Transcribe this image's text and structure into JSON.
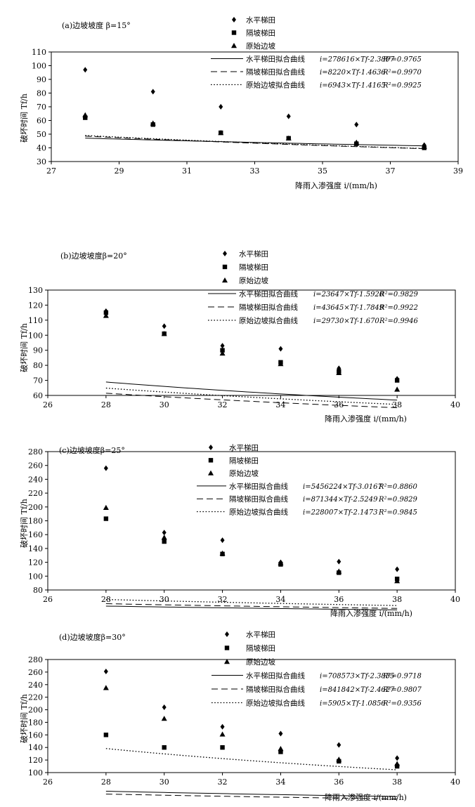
{
  "chart_data": [
    {
      "type": "scatter",
      "title": "(a)边坡坡度 β=15°",
      "xlabel": "降雨入渗强度 i/(mm/h)",
      "ylabel": "破坏时间 Tf/h",
      "xlim": [
        27,
        39
      ],
      "xticks": [
        27,
        29,
        31,
        33,
        35,
        37,
        39
      ],
      "ylim": [
        30,
        110
      ],
      "yticks": [
        30,
        40,
        50,
        60,
        70,
        80,
        90,
        100,
        110
      ],
      "series": [
        {
          "name": "水平梯田",
          "marker": "diamond",
          "x": [
            28,
            30,
            32,
            34,
            36,
            38
          ],
          "y": [
            97,
            81,
            70,
            63,
            57,
            42
          ]
        },
        {
          "name": "隔坡梯田",
          "marker": "square",
          "x": [
            28,
            30,
            32,
            34,
            36,
            38
          ],
          "y": [
            62,
            57,
            51,
            47,
            43,
            40
          ]
        },
        {
          "name": "原始边坡",
          "marker": "triangle",
          "x": [
            28,
            30,
            32,
            34,
            36,
            38
          ],
          "y": [
            64,
            58,
            51,
            47,
            44,
            41
          ]
        }
      ],
      "fits": [
        {
          "name": "水平梯田拟合曲线",
          "equation": "i=278616×Tf-2.3897",
          "r2": "R²=0.9765",
          "style": "solid",
          "a": 278616,
          "b": 2.3897
        },
        {
          "name": "隔坡梯田拟合曲线",
          "equation": "i=8220×Tf-1.4636",
          "r2": "R²=0.9970",
          "style": "dashed",
          "a": 8220,
          "b": 1.4636
        },
        {
          "name": "原始边坡拟合曲线",
          "equation": "i=6943×Tf-1.4165",
          "r2": "R²=0.9925",
          "style": "dotted",
          "a": 6943,
          "b": 1.4165
        }
      ]
    },
    {
      "type": "scatter",
      "title": "(b)边坡坡度β=20°",
      "xlabel": "降雨入渗强度 i/(mm/h)",
      "ylabel": "破坏时间 Tf/h",
      "xlim": [
        26,
        40
      ],
      "xticks": [
        26,
        28,
        30,
        32,
        34,
        36,
        38,
        40
      ],
      "ylim": [
        60,
        130
      ],
      "yticks": [
        60,
        70,
        80,
        90,
        100,
        110,
        120,
        130
      ],
      "series": [
        {
          "name": "水平梯田",
          "marker": "diamond",
          "x": [
            28,
            30,
            32,
            34,
            36,
            38
          ],
          "y": [
            116,
            106,
            93,
            91,
            78,
            71
          ]
        },
        {
          "name": "隔坡梯田",
          "marker": "square",
          "x": [
            28,
            30,
            32,
            34,
            36,
            38
          ],
          "y": [
            115,
            101,
            90,
            82,
            76,
            70
          ]
        },
        {
          "name": "原始边坡",
          "marker": "triangle",
          "x": [
            28,
            30,
            32,
            34,
            36,
            38
          ],
          "y": [
            113,
            101,
            88,
            81,
            75,
            64
          ]
        }
      ],
      "fits": [
        {
          "name": "水平梯田拟合曲线",
          "equation": "i=23647×Tf-1.5920",
          "r2": "R²=0.9829",
          "style": "solid",
          "a": 23647,
          "b": 1.592
        },
        {
          "name": "隔坡梯田拟合曲线",
          "equation": "i=43645×Tf-1.7849",
          "r2": "R²=0.9922",
          "style": "dashed",
          "a": 43645,
          "b": 1.7849
        },
        {
          "name": "原始边坡拟合曲线",
          "equation": "i=29730×Tf-1.670",
          "r2": "R²=0.9946",
          "style": "dotted",
          "a": 29730,
          "b": 1.67
        }
      ]
    },
    {
      "type": "scatter",
      "title": "(c)边坡坡度β=25°",
      "xlabel": "降雨入渗强度 i/(mm/h)",
      "ylabel": "破坏时间 Tf/h",
      "xlim": [
        26,
        40
      ],
      "xticks": [
        26,
        28,
        30,
        32,
        34,
        36,
        38,
        40
      ],
      "ylim": [
        80,
        280
      ],
      "yticks": [
        80,
        100,
        120,
        140,
        160,
        180,
        200,
        220,
        240,
        260,
        280
      ],
      "series": [
        {
          "name": "水平梯田",
          "marker": "diamond",
          "x": [
            28,
            30,
            32,
            34,
            36,
            38
          ],
          "y": [
            256,
            163,
            152,
            120,
            121,
            110
          ]
        },
        {
          "name": "隔坡梯田",
          "marker": "square",
          "x": [
            28,
            30,
            32,
            34,
            36,
            38
          ],
          "y": [
            183,
            150,
            132,
            117,
            105,
            96
          ]
        },
        {
          "name": "原始边坡",
          "marker": "triangle",
          "x": [
            28,
            30,
            32,
            34,
            36,
            38
          ],
          "y": [
            199,
            156,
            133,
            119,
            107,
            93
          ]
        }
      ],
      "fits": [
        {
          "name": "水平梯田拟合曲线",
          "equation": "i=5456224×Tf-3.0167",
          "r2": "R²=0.8860",
          "style": "solid",
          "a": 5456224,
          "b": 3.0167
        },
        {
          "name": "隔坡梯田拟合曲线",
          "equation": "i=871344×Tf-2.5249",
          "r2": "R²=0.9829",
          "style": "dashed",
          "a": 871344,
          "b": 2.5249
        },
        {
          "name": "原始边坡拟合曲线",
          "equation": "i=228007×Tf-2.1473",
          "r2": "R²=0.9845",
          "style": "dotted",
          "a": 228007,
          "b": 2.1473
        }
      ]
    },
    {
      "type": "scatter",
      "title": "(d)边坡坡度β=30°",
      "xlabel": "降雨入渗强度 i/(mm/h)",
      "ylabel": "破坏时间 Tf/h",
      "xlim": [
        26,
        40
      ],
      "xticks": [
        26,
        28,
        30,
        32,
        34,
        36,
        38,
        40
      ],
      "ylim": [
        100,
        280
      ],
      "yticks": [
        100,
        120,
        140,
        160,
        180,
        200,
        220,
        240,
        260,
        280
      ],
      "series": [
        {
          "name": "水平梯田",
          "marker": "diamond",
          "x": [
            28,
            30,
            32,
            34,
            36,
            38
          ],
          "y": [
            261,
            204,
            173,
            162,
            144,
            123
          ]
        },
        {
          "name": "隔坡梯田",
          "marker": "square",
          "x": [
            28,
            30,
            32,
            34,
            36,
            38
          ],
          "y": [
            160,
            140,
            140,
            133,
            118,
            110
          ]
        },
        {
          "name": "原始边坡",
          "marker": "triangle",
          "x": [
            28,
            30,
            32,
            34,
            36,
            38
          ],
          "y": [
            235,
            186,
            161,
            138,
            121,
            114
          ]
        }
      ],
      "fits": [
        {
          "name": "水平梯田拟合曲线",
          "equation": "i=708573×Tf-2.3835",
          "r2": "R²=0.9718",
          "style": "solid",
          "a": 708573,
          "b": 2.3835
        },
        {
          "name": "隔坡梯田拟合曲线",
          "equation": "i=841842×Tf-2.4627",
          "r2": "R²=0.9807",
          "style": "dashed",
          "a": 841842,
          "b": 2.4627
        },
        {
          "name": "原始边坡拟合曲线",
          "equation": "i=5905×Tf-1.0856",
          "r2": "R²=0.9356",
          "style": "dotted",
          "a": 5905,
          "b": 1.0856
        }
      ]
    }
  ]
}
